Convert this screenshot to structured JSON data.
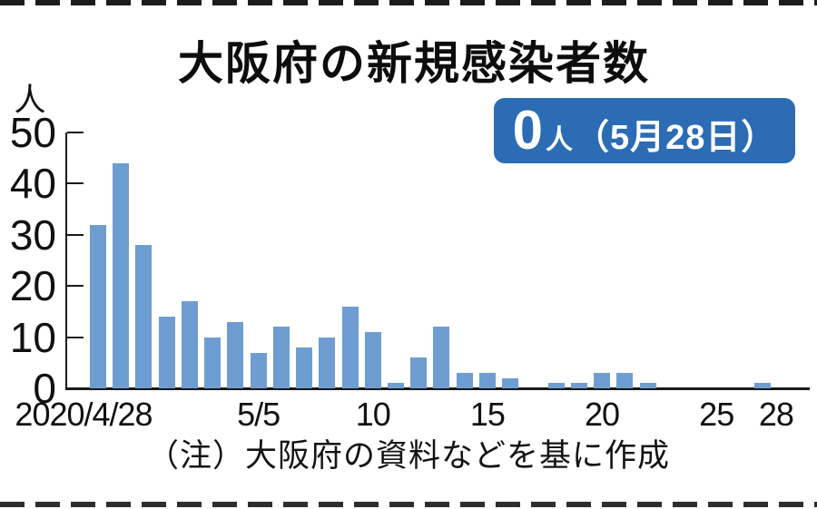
{
  "title": "大阪府の新規感染者数",
  "unit_label": "人",
  "badge": {
    "value": "0",
    "unit": "人",
    "date": "（5月28日）",
    "bg_color": "#2B6CB4",
    "text_color": "#ffffff"
  },
  "note": "（注）大阪府の資料などを基に作成",
  "colors": {
    "bar": "#6D9DD1",
    "axis": "#1a1a1a",
    "text": "#111111"
  },
  "chart_data": {
    "type": "bar",
    "title": "大阪府の新規感染者数",
    "ylabel": "人",
    "ylim": [
      0,
      50
    ],
    "y_ticks": [
      0,
      10,
      20,
      30,
      40,
      50
    ],
    "grid": false,
    "legend": "none",
    "annotation": "0人（5月28日）",
    "x": [
      "2020/4/28",
      "4/29",
      "4/30",
      "5/1",
      "5/2",
      "5/3",
      "5/4",
      "5/5",
      "5/6",
      "5/7",
      "5/8",
      "5/9",
      "5/10",
      "5/11",
      "5/12",
      "5/13",
      "5/14",
      "5/15",
      "5/16",
      "5/17",
      "5/18",
      "5/19",
      "5/20",
      "5/21",
      "5/22",
      "5/23",
      "5/24",
      "5/25",
      "5/26",
      "5/27",
      "5/28"
    ],
    "values": [
      32,
      44,
      28,
      14,
      17,
      10,
      13,
      7,
      12,
      8,
      10,
      16,
      11,
      1,
      6,
      12,
      3,
      3,
      2,
      0,
      1,
      1,
      3,
      3,
      1,
      0,
      0,
      0,
      0,
      1,
      0
    ],
    "x_tick_labels": [
      {
        "index": 0,
        "label": "2020/4/28"
      },
      {
        "index": 7,
        "label": "5/5"
      },
      {
        "index": 12,
        "label": "10"
      },
      {
        "index": 17,
        "label": "15"
      },
      {
        "index": 22,
        "label": "20"
      },
      {
        "index": 27,
        "label": "25"
      },
      {
        "index": 30,
        "label": "28"
      }
    ]
  }
}
